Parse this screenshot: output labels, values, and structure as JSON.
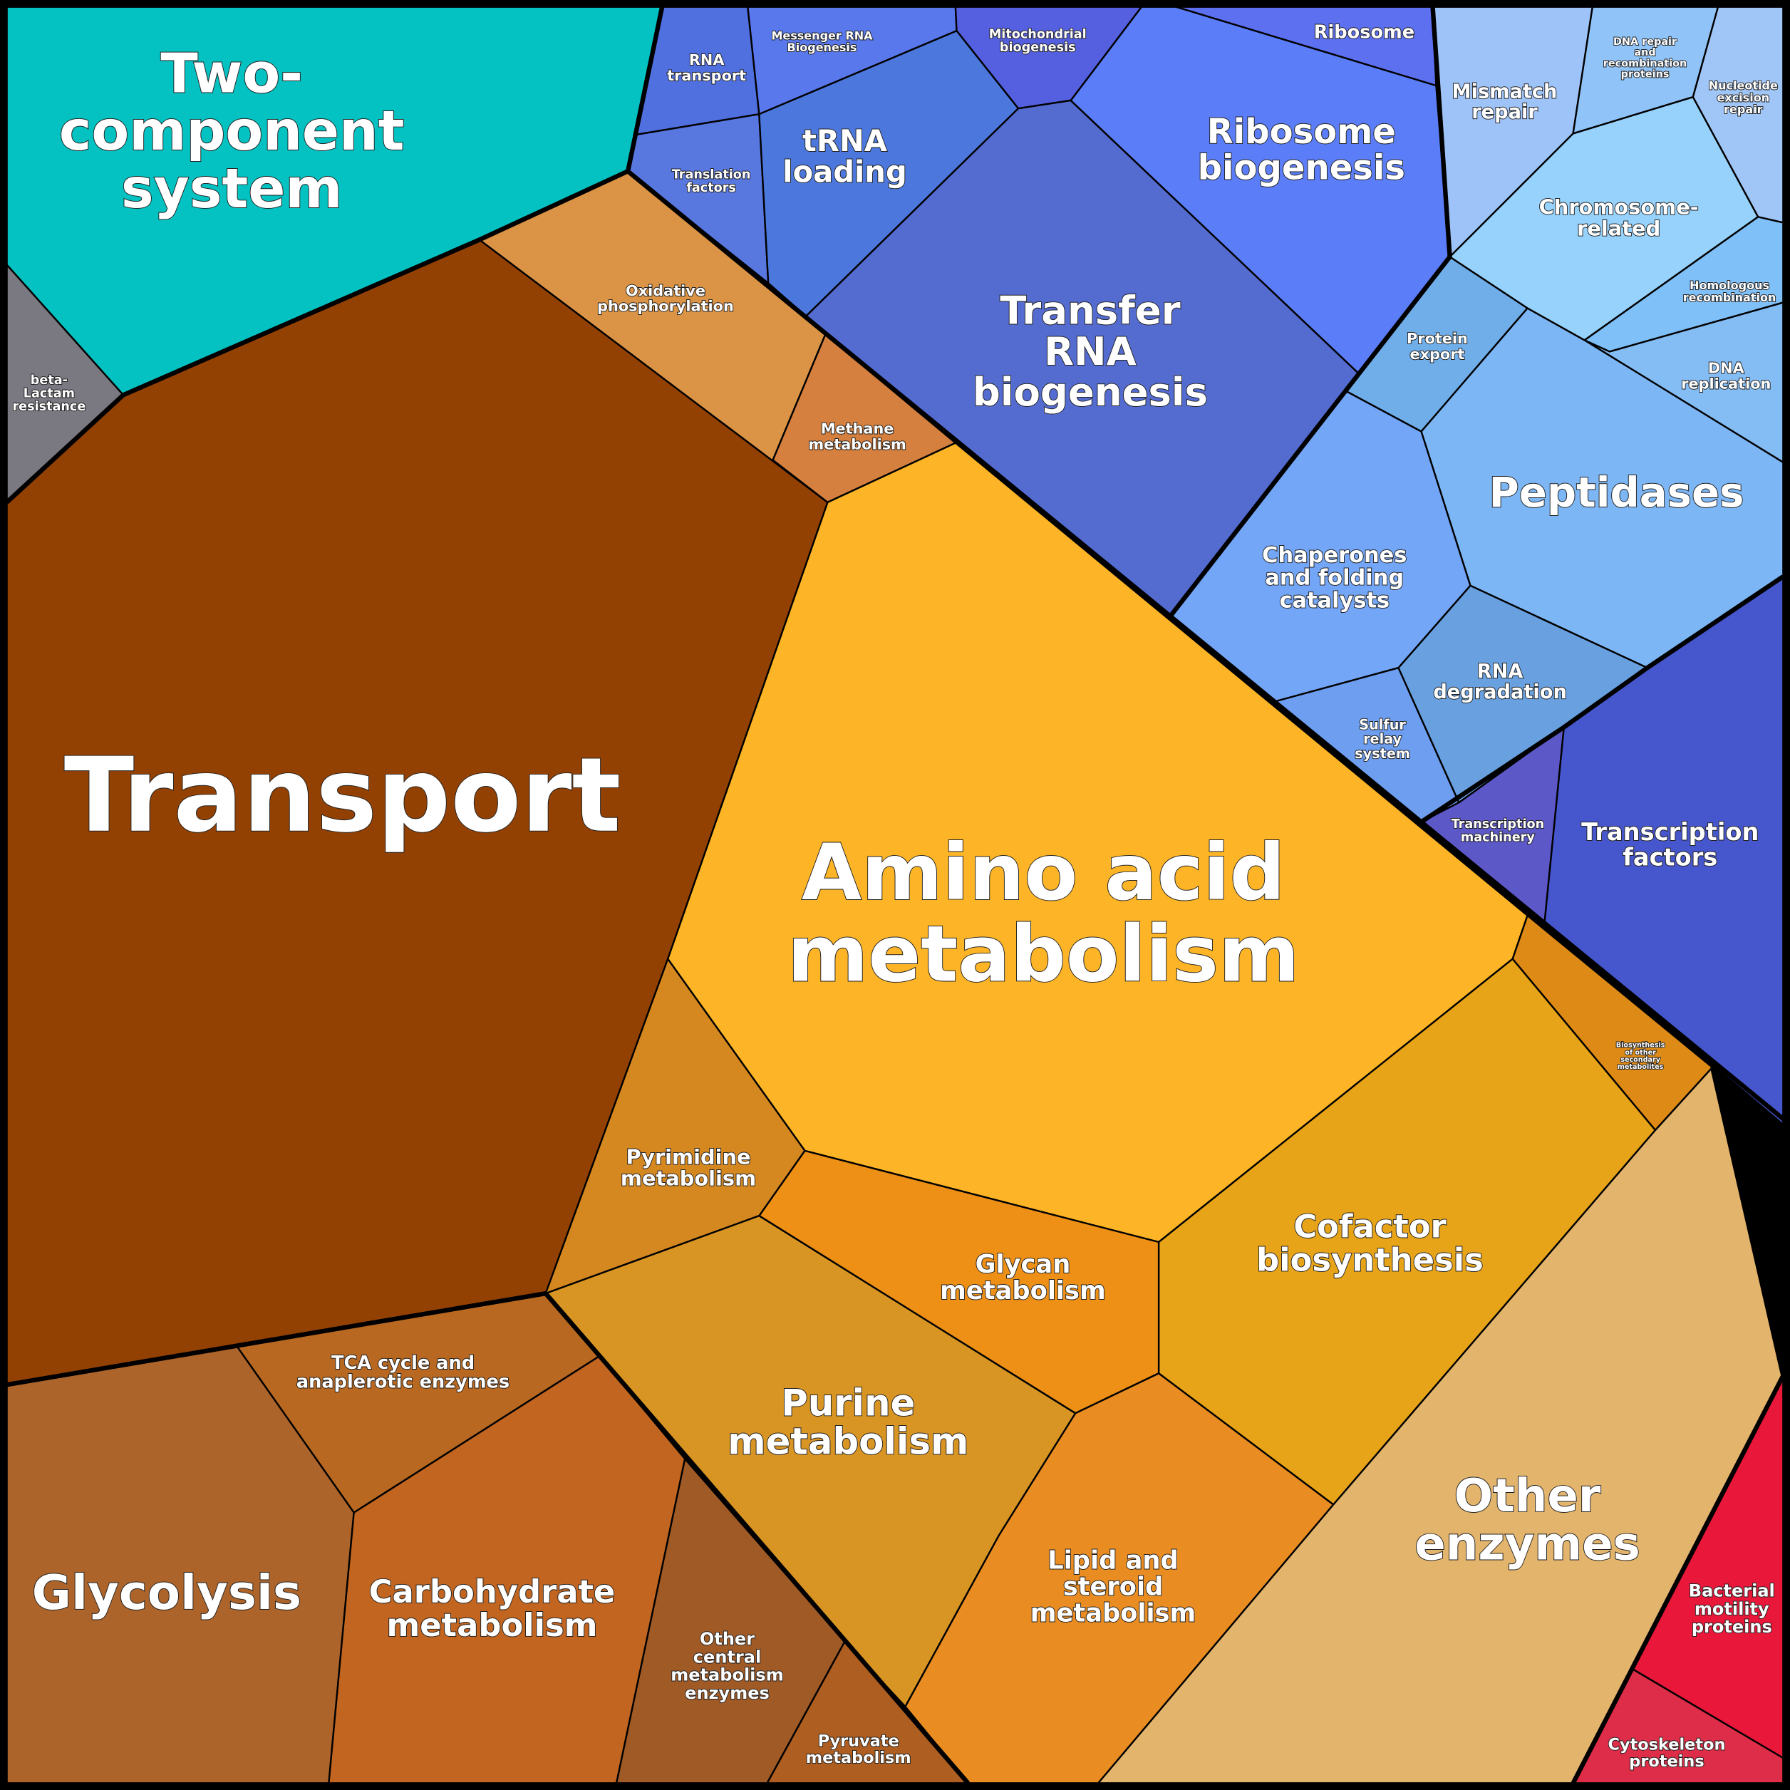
{
  "cells": [
    {
      "label": [
        "Two-",
        "component",
        "system"
      ]
    },
    {
      "label": [
        "beta-",
        "Lactam",
        "resistance"
      ]
    },
    {
      "label": [
        "Transport"
      ]
    },
    {
      "label": [
        "Oxidative",
        "phosphorylation"
      ]
    },
    {
      "label": [
        "Methane",
        "metabolism"
      ]
    },
    {
      "label": [
        "Amino acid",
        "metabolism"
      ]
    },
    {
      "label": [
        "Biosynthesis",
        "of other",
        "secondary",
        "metabolites"
      ]
    },
    {
      "label": [
        "Cofactor",
        "biosynthesis"
      ]
    },
    {
      "label": [
        "Glycan",
        "metabolism"
      ]
    },
    {
      "label": [
        "Pyrimidine",
        "metabolism"
      ]
    },
    {
      "label": [
        "Purine",
        "metabolism"
      ]
    },
    {
      "label": [
        "Lipid and",
        "steroid",
        "metabolism"
      ]
    },
    {
      "label": [
        "Other",
        "enzymes"
      ]
    },
    {
      "label": [
        "Bacterial",
        "motility",
        "proteins"
      ]
    },
    {
      "label": [
        "Cytoskeleton",
        "proteins"
      ]
    },
    {
      "label": [
        "TCA cycle and",
        "anaplerotic enzymes"
      ]
    },
    {
      "label": [
        "Glycolysis"
      ]
    },
    {
      "label": [
        "Carbohydrate",
        "metabolism"
      ]
    },
    {
      "label": [
        "Other",
        "central",
        "metabolism",
        "enzymes"
      ]
    },
    {
      "label": [
        "Pyruvate",
        "metabolism"
      ]
    },
    {
      "label": [
        "RNA",
        "transport"
      ]
    },
    {
      "label": [
        "Translation",
        "factors"
      ]
    },
    {
      "label": [
        "Messenger RNA",
        "Biogenesis"
      ]
    },
    {
      "label": [
        "Mitochondrial",
        "biogenesis"
      ]
    },
    {
      "label": [
        "tRNA",
        "loading"
      ]
    },
    {
      "label": [
        "Transfer",
        "RNA",
        "biogenesis"
      ]
    },
    {
      "label": [
        "Ribosome"
      ]
    },
    {
      "label": [
        "Ribosome",
        "biogenesis"
      ]
    },
    {
      "label": [
        "Mismatch",
        "repair"
      ]
    },
    {
      "label": [
        "DNA repair",
        "and",
        "recombination",
        "proteins"
      ]
    },
    {
      "label": [
        "Nucleotide",
        "excision",
        "repair"
      ]
    },
    {
      "label": [
        "Chromosome-",
        "related"
      ]
    },
    {
      "label": [
        "Homologous",
        "recombination"
      ]
    },
    {
      "label": [
        "DNA",
        "replication"
      ]
    },
    {
      "label": [
        "Protein",
        "export"
      ]
    },
    {
      "label": [
        "Peptidases"
      ]
    },
    {
      "label": [
        "Chaperones",
        "and folding",
        "catalysts"
      ]
    },
    {
      "label": [
        "Sulfur",
        "relay",
        "system"
      ]
    },
    {
      "label": [
        "RNA",
        "degradation"
      ]
    },
    {
      "label": [
        "Transcription",
        "machinery"
      ]
    },
    {
      "label": [
        "Transcription",
        "factors"
      ]
    }
  ]
}
